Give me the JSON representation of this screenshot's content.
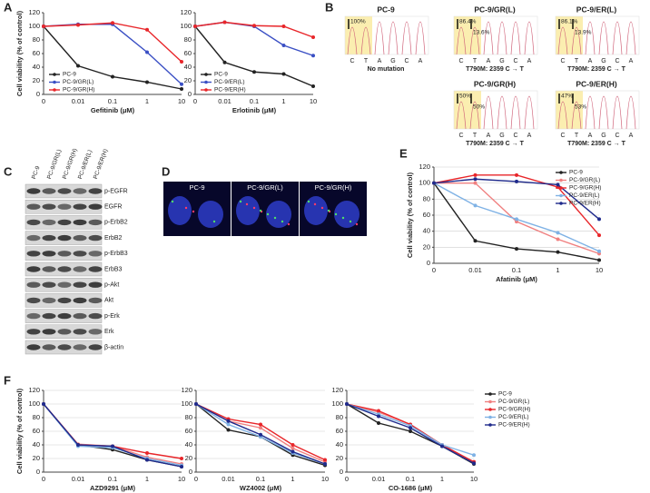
{
  "panel_labels": [
    "A",
    "B",
    "C",
    "D",
    "E",
    "F"
  ],
  "chart_data": [
    {
      "type": "line",
      "xlabel": "Gefitinib (μM)",
      "ylabel": "Cell viability (% of control)",
      "categories": [
        "0",
        "0.01",
        "0.1",
        "1",
        "10"
      ],
      "ylim": [
        0,
        120
      ],
      "yticks": [
        0,
        20,
        40,
        60,
        80,
        100,
        120
      ],
      "grid": false,
      "legend": "lower left",
      "series": [
        {
          "name": "PC-9",
          "color": "#222222",
          "values": [
            100,
            42,
            26,
            18,
            8
          ]
        },
        {
          "name": "PC-9/GR(L)",
          "color": "#3a4fc4",
          "values": [
            100,
            103,
            103,
            62,
            15
          ]
        },
        {
          "name": "PC-9/GR(H)",
          "color": "#e8262a",
          "values": [
            100,
            102,
            105,
            95,
            48
          ]
        }
      ]
    },
    {
      "type": "line",
      "xlabel": "Erlotinib (μM)",
      "categories": [
        "0",
        "0.01",
        "0.1",
        "1",
        "10"
      ],
      "ylim": [
        0,
        120
      ],
      "yticks": [
        0,
        20,
        40,
        60,
        80,
        100,
        120
      ],
      "grid": false,
      "legend": "lower left",
      "series": [
        {
          "name": "PC-9",
          "color": "#222222",
          "values": [
            100,
            47,
            33,
            30,
            12
          ]
        },
        {
          "name": "PC-9/ER(L)",
          "color": "#3a4fc4",
          "values": [
            100,
            106,
            100,
            72,
            57
          ]
        },
        {
          "name": "PC-9/ER(H)",
          "color": "#e8262a",
          "values": [
            100,
            106,
            101,
            100,
            84
          ]
        }
      ]
    },
    {
      "type": "line",
      "xlabel": "Afatinib (μM)",
      "ylabel": "Cell viability (% of control)",
      "categories": [
        "0",
        "0.01",
        "0.1",
        "1",
        "10"
      ],
      "ylim": [
        0,
        120
      ],
      "yticks": [
        0,
        20,
        40,
        60,
        80,
        100,
        120
      ],
      "grid": true,
      "legend": "upper right",
      "series": [
        {
          "name": "PC-9",
          "color": "#222222",
          "values": [
            100,
            28,
            18,
            14,
            4
          ]
        },
        {
          "name": "PC-9/GR(L)",
          "color": "#f08080",
          "values": [
            100,
            100,
            52,
            30,
            12
          ]
        },
        {
          "name": "PC-9/GR(H)",
          "color": "#e8262a",
          "values": [
            100,
            110,
            110,
            95,
            35
          ]
        },
        {
          "name": "PC-9/ER(L)",
          "color": "#7fb2e5",
          "values": [
            100,
            72,
            55,
            38,
            15
          ]
        },
        {
          "name": "PC-9/ER(H)",
          "color": "#1f2a8c",
          "values": [
            100,
            105,
            102,
            98,
            55
          ]
        }
      ]
    },
    {
      "type": "line",
      "xlabel": "AZD9291 (μM)",
      "ylabel": "Cell viability (% of control)",
      "categories": [
        "0",
        "0.01",
        "0.1",
        "1",
        "10"
      ],
      "ylim": [
        0,
        120
      ],
      "yticks": [
        0,
        20,
        40,
        60,
        80,
        100,
        120
      ],
      "grid": true,
      "series": [
        {
          "color": "#222222",
          "values": [
            100,
            40,
            33,
            18,
            8
          ]
        },
        {
          "color": "#f08080",
          "values": [
            100,
            41,
            38,
            22,
            12
          ]
        },
        {
          "color": "#e8262a",
          "values": [
            100,
            40,
            38,
            28,
            20
          ]
        },
        {
          "color": "#7fb2e5",
          "values": [
            100,
            38,
            36,
            20,
            10
          ]
        },
        {
          "color": "#1f2a8c",
          "values": [
            100,
            40,
            38,
            18,
            8
          ]
        }
      ]
    },
    {
      "type": "line",
      "xlabel": "WZ4002 (μM)",
      "categories": [
        "0",
        "0.01",
        "0.1",
        "1",
        "10"
      ],
      "ylim": [
        0,
        120
      ],
      "yticks": [
        0,
        20,
        40,
        60,
        80,
        100,
        120
      ],
      "grid": true,
      "series": [
        {
          "color": "#222222",
          "values": [
            100,
            62,
            52,
            25,
            10
          ]
        },
        {
          "color": "#f08080",
          "values": [
            100,
            75,
            65,
            35,
            15
          ]
        },
        {
          "color": "#e8262a",
          "values": [
            100,
            78,
            70,
            40,
            18
          ]
        },
        {
          "color": "#7fb2e5",
          "values": [
            100,
            70,
            52,
            28,
            12
          ]
        },
        {
          "color": "#1f2a8c",
          "values": [
            100,
            75,
            55,
            30,
            12
          ]
        }
      ]
    },
    {
      "type": "line",
      "xlabel": "CO-1686 (μM)",
      "categories": [
        "0",
        "0.01",
        "0.1",
        "1",
        "10"
      ],
      "ylim": [
        0,
        120
      ],
      "yticks": [
        0,
        20,
        40,
        60,
        80,
        100,
        120
      ],
      "grid": true,
      "legend": "right",
      "series": [
        {
          "name": "PC-9",
          "color": "#222222",
          "values": [
            100,
            72,
            60,
            38,
            12
          ]
        },
        {
          "name": "PC-9/GR(L)",
          "color": "#f08080",
          "values": [
            100,
            88,
            70,
            40,
            15
          ]
        },
        {
          "name": "PC-9/GR(H)",
          "color": "#e8262a",
          "values": [
            100,
            90,
            70,
            40,
            15
          ]
        },
        {
          "name": "PC-9/ER(L)",
          "color": "#7fb2e5",
          "values": [
            100,
            85,
            68,
            40,
            25
          ]
        },
        {
          "name": "PC-9/ER(H)",
          "color": "#1f2a8c",
          "values": [
            100,
            82,
            65,
            38,
            13
          ]
        }
      ]
    }
  ],
  "sequencing": {
    "bases": [
      "C",
      "T",
      "A",
      "G",
      "C",
      "A"
    ],
    "panels": [
      {
        "title": "PC-9",
        "peaks": [
          "100%"
        ],
        "caption": "No mutation"
      },
      {
        "title": "PC-9/GR(L)",
        "peaks": [
          "86.4%",
          "13.6%"
        ],
        "caption": "T790M: 2359 C → T"
      },
      {
        "title": "PC-9/ER(L)",
        "peaks": [
          "86.1%",
          "13.9%"
        ],
        "caption": "T790M: 2359 C → T"
      },
      {
        "title": "PC-9/GR(H)",
        "peaks": [
          "50%",
          "50%"
        ],
        "caption": "T790M: 2359 C → T"
      },
      {
        "title": "PC-9/ER(H)",
        "peaks": [
          "47%",
          "53%"
        ],
        "caption": "T790M: 2359 C → T"
      }
    ]
  },
  "western": {
    "columns": [
      "PC-9",
      "PC-9/GR(L)",
      "PC-9/GR(H)",
      "PC-9/ER(L)",
      "PC-9/ER(H)"
    ],
    "rows": [
      "p-EGFR",
      "EGFR",
      "p-ErbB2",
      "ErbB2",
      "p-ErbB3",
      "ErbB3",
      "p-Akt",
      "Akt",
      "p-Erk",
      "Erk",
      "β-actin"
    ]
  },
  "fish": {
    "labels": [
      "PC-9",
      "PC-9/GR(L)",
      "PC-9/GR(H)"
    ]
  }
}
